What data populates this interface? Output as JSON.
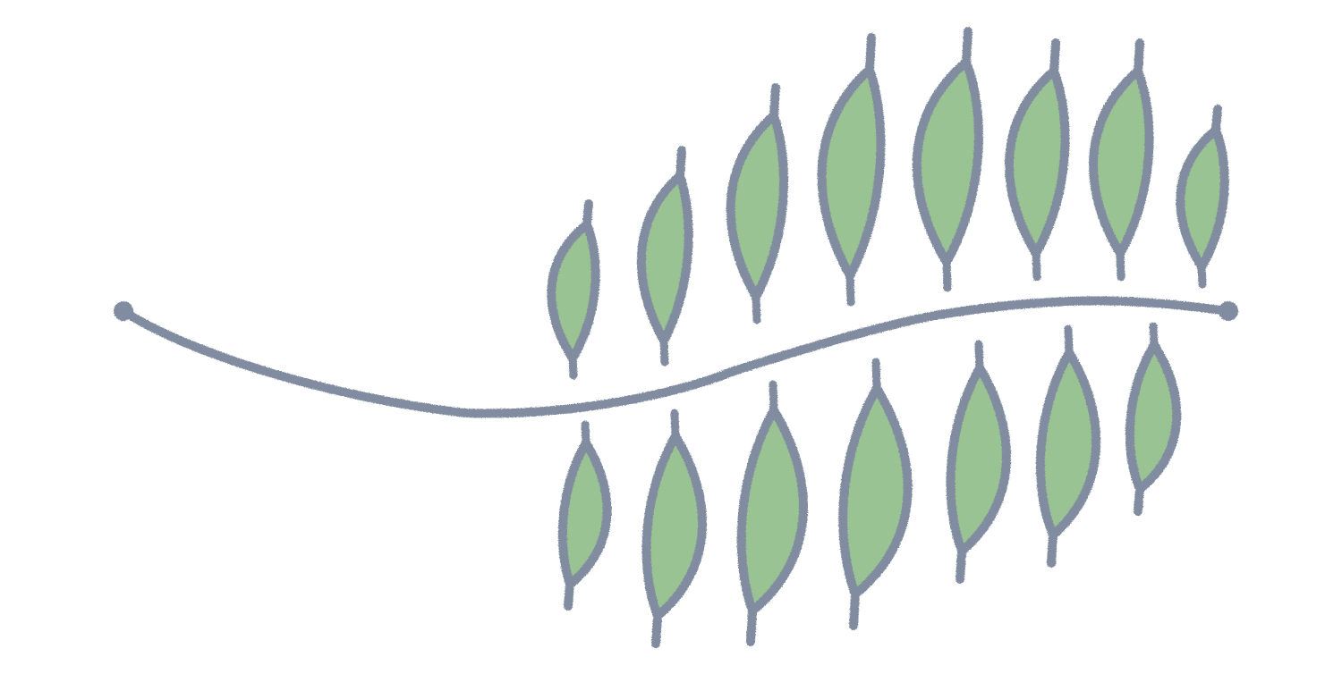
{
  "illustration": {
    "subject": "leaf-branch-icon",
    "colors": {
      "stroke": "#818ca1",
      "leaf_fill": "#99c392",
      "background": "#ffffff"
    },
    "leaf_count": {
      "upper": 8,
      "lower": 7
    }
  }
}
